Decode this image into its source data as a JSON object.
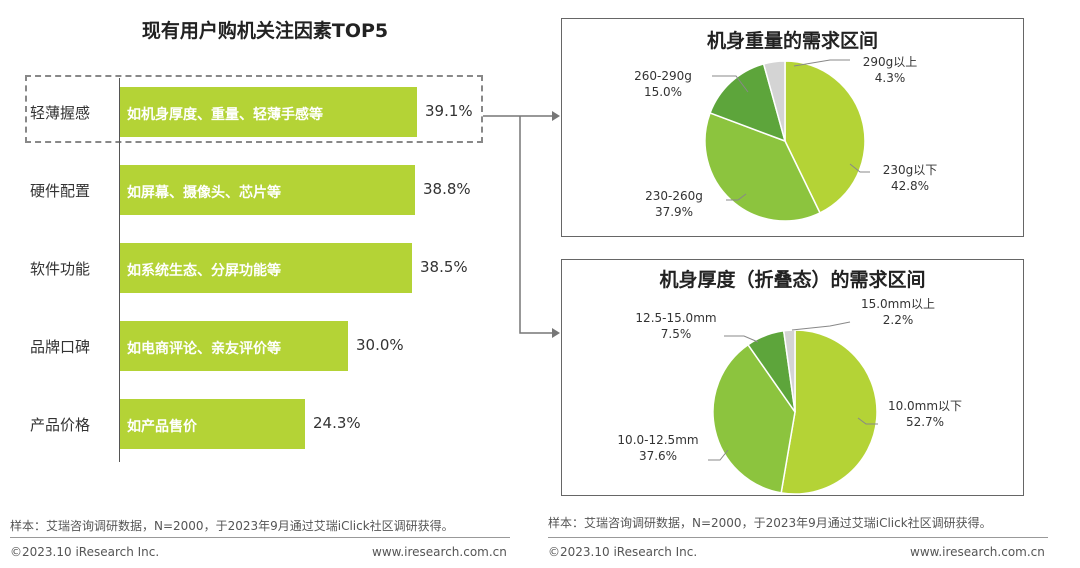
{
  "left_title": "现有用户购机关注因素TOP5",
  "bars": [
    {
      "category": "轻薄握感",
      "desc": "如机身厚度、重量、轻薄手感等",
      "value": 39.1,
      "value_label": "39.1%"
    },
    {
      "category": "硬件配置",
      "desc": "如屏幕、摄像头、芯片等",
      "value": 38.8,
      "value_label": "38.8%"
    },
    {
      "category": "软件功能",
      "desc": "如系统生态、分屏功能等",
      "value": 38.5,
      "value_label": "38.5%"
    },
    {
      "category": "品牌口碑",
      "desc": "如电商评论、亲友评价等",
      "value": 30.0,
      "value_label": "30.0%"
    },
    {
      "category": "产品价格",
      "desc": "如产品售价",
      "value": 24.3,
      "value_label": "24.3%"
    }
  ],
  "pie1": {
    "title": "机身重量的需求区间",
    "slices": [
      {
        "name": "230g以下",
        "value": 42.8,
        "label": "42.8%"
      },
      {
        "name": "230-260g",
        "value": 37.9,
        "label": "37.9%"
      },
      {
        "name": "260-290g",
        "value": 15.0,
        "label": "15.0%"
      },
      {
        "name": "290g以上",
        "value": 4.3,
        "label": "4.3%"
      }
    ]
  },
  "pie2": {
    "title": "机身厚度（折叠态）的需求区间",
    "slices": [
      {
        "name": "10.0mm以下",
        "value": 52.7,
        "label": "52.7%"
      },
      {
        "name": "10.0-12.5mm",
        "value": 37.6,
        "label": "37.6%"
      },
      {
        "name": "12.5-15.0mm",
        "value": 7.5,
        "label": "7.5%"
      },
      {
        "name": "15.0mm以上",
        "value": 2.2,
        "label": "2.2%"
      }
    ]
  },
  "colors": {
    "bar": "#b4d336",
    "slice1": "#b4d336",
    "slice2": "#8cc43e",
    "slice3": "#5da53b",
    "slice4": "#d4d4d4"
  },
  "footer": {
    "source": "样本：艾瑞咨询调研数据，N=2000，于2023年9月通过艾瑞iClick社区调研获得。",
    "copyright": "©2023.10 iResearch Inc.",
    "website": "www.iresearch.com.cn"
  },
  "chart_data": [
    {
      "type": "bar",
      "title": "现有用户购机关注因素TOP5",
      "categories": [
        "轻薄握感",
        "硬件配置",
        "软件功能",
        "品牌口碑",
        "产品价格"
      ],
      "values": [
        39.1,
        38.8,
        38.5,
        30.0,
        24.3
      ]
    },
    {
      "type": "pie",
      "title": "机身重量的需求区间",
      "categories": [
        "230g以下",
        "230-260g",
        "260-290g",
        "290g以上"
      ],
      "values": [
        42.8,
        37.9,
        15.0,
        4.3
      ]
    },
    {
      "type": "pie",
      "title": "机身厚度（折叠态）的需求区间",
      "categories": [
        "10.0mm以下",
        "10.0-12.5mm",
        "12.5-15.0mm",
        "15.0mm以上"
      ],
      "values": [
        52.7,
        37.6,
        7.5,
        2.2
      ]
    }
  ]
}
